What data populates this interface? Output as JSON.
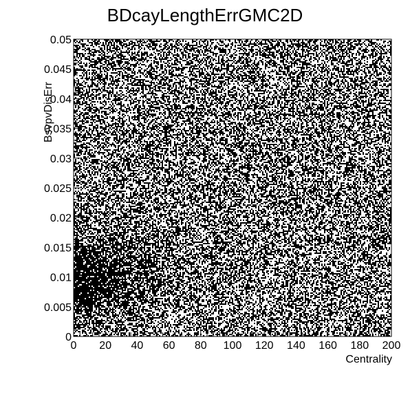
{
  "chart_data": {
    "type": "heatmap",
    "title": "BDcayLengthErrGMC2D",
    "xlabel": "Centrality",
    "ylabel": "BsvpvDisErr",
    "xlim": [
      0,
      200
    ],
    "ylim": [
      0,
      0.05
    ],
    "x_ticks": [
      "0",
      "20",
      "40",
      "60",
      "80",
      "100",
      "120",
      "140",
      "160",
      "180",
      "200"
    ],
    "y_ticks": [
      "0",
      "0.005",
      "0.01",
      "0.015",
      "0.02",
      "0.025",
      "0.03",
      "0.035",
      "0.04",
      "0.045",
      "0.05"
    ],
    "x_tick_values": [
      0,
      20,
      40,
      60,
      80,
      100,
      120,
      140,
      160,
      180,
      200
    ],
    "y_tick_values": [
      0,
      0.005,
      0.01,
      0.015,
      0.02,
      0.025,
      0.03,
      0.035,
      0.04,
      0.045,
      0.05
    ],
    "density_description": {
      "background_fill_fraction": 0.5,
      "dense_region_x": [
        0,
        60
      ],
      "dense_region_y": [
        0.005,
        0.02
      ],
      "peak_x": 5,
      "peak_y": 0.009
    },
    "colors": {
      "point": "#000000",
      "background": "#ffffff"
    },
    "grid": false,
    "legend": "none"
  }
}
